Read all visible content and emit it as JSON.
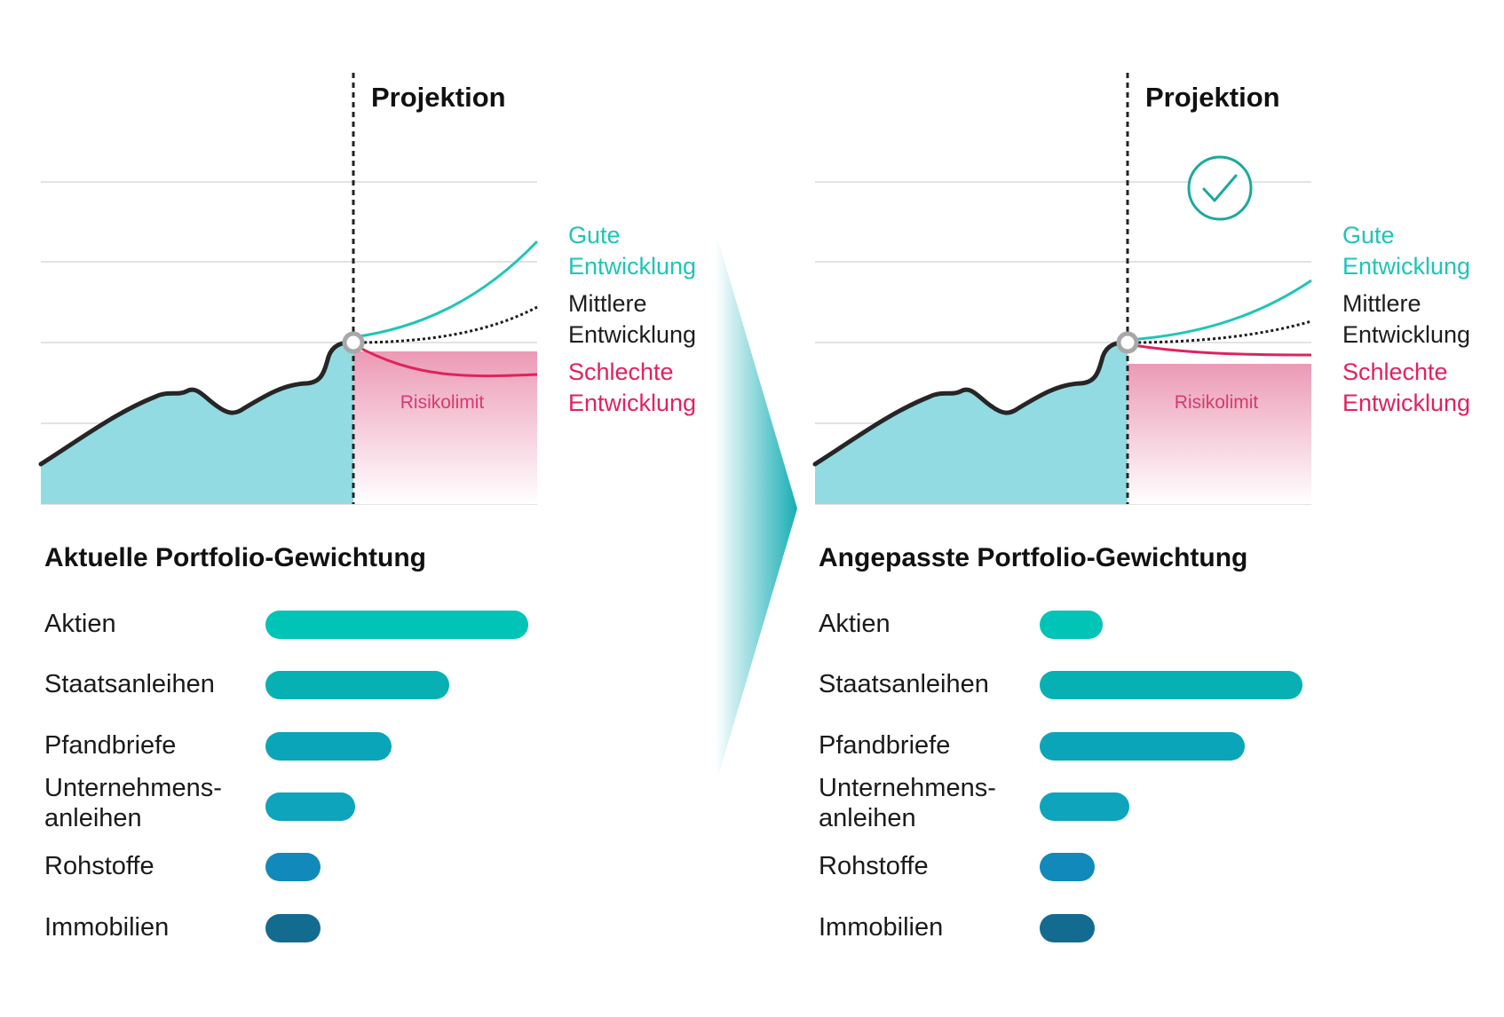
{
  "panels": [
    {
      "projection_label": "Projektion",
      "legend": {
        "good": "Gute\nEntwicklung",
        "mid": "Mittlere\nEntwicklung",
        "bad": "Schlechte\nEntwicklung"
      },
      "risk_label": "Risikolimit",
      "allocation_title": "Aktuelle Portfolio-Gewichtung",
      "allocations": [
        {
          "label": "Aktien",
          "weight": 1.0,
          "color": "#00c4b6"
        },
        {
          "label": "Staatsanleihen",
          "weight": 0.7,
          "color": "#06b0b3"
        },
        {
          "label": "Pfandbriefe",
          "weight": 0.48,
          "color": "#0aa5b8"
        },
        {
          "label": "Unternehmens-\nanleihen",
          "weight": 0.34,
          "color": "#0da4bc"
        },
        {
          "label": "Rohstoffe",
          "weight": 0.21,
          "color": "#1189bb"
        },
        {
          "label": "Immobilien",
          "weight": 0.21,
          "color": "#136b90"
        }
      ]
    },
    {
      "projection_label": "Projektion",
      "legend": {
        "good": "Gute\nEntwicklung",
        "mid": "Mittlere\nEntwicklung",
        "bad": "Schlechte\nEntwicklung"
      },
      "risk_label": "Risikolimit",
      "allocation_title": "Angepasste Portfolio-Gewichtung",
      "allocations": [
        {
          "label": "Aktien",
          "weight": 0.24,
          "color": "#00c4b6"
        },
        {
          "label": "Staatsanleihen",
          "weight": 1.0,
          "color": "#06b0b3"
        },
        {
          "label": "Pfandbriefe",
          "weight": 0.78,
          "color": "#0aa5b8"
        },
        {
          "label": "Unternehmens-\nanleihen",
          "weight": 0.34,
          "color": "#0da4bc"
        },
        {
          "label": "Rohstoffe",
          "weight": 0.21,
          "color": "#1189bb"
        },
        {
          "label": "Immobilien",
          "weight": 0.21,
          "color": "#136b90"
        }
      ]
    }
  ],
  "colors": {
    "good": "#1ec5b5",
    "mid": "#1d1d1d",
    "bad": "#e0225d",
    "history_fill": "#93dbe2",
    "check": "#1aa99c"
  }
}
